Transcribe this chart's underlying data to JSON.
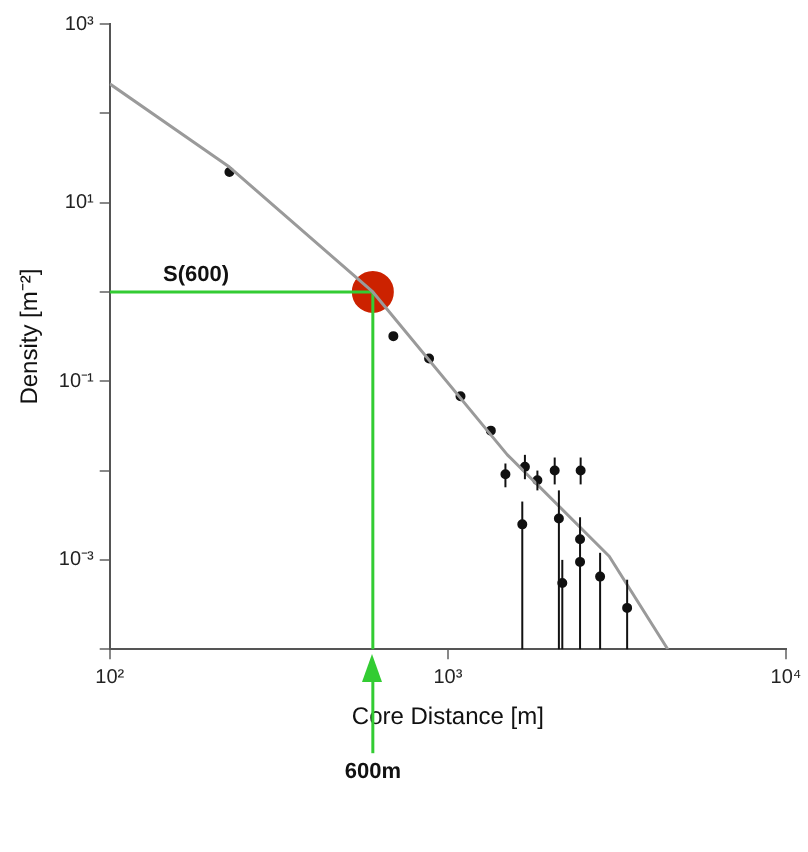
{
  "chart_data": {
    "type": "scatter",
    "xlabel": "Core Distance [m]",
    "ylabel": "Density [m⁻²]",
    "log": "xy",
    "xlim": [
      100,
      10000
    ],
    "ylim": [
      0.0001,
      1000
    ],
    "xticks": [
      {
        "value": 100,
        "label": "10²"
      },
      {
        "value": 1000,
        "label": "10³"
      },
      {
        "value": 10000,
        "label": "10⁴"
      }
    ],
    "yticks": [
      {
        "value": 0.0001,
        "label": null
      },
      {
        "value": 0.001,
        "label": "10⁻³"
      },
      {
        "value": 0.01,
        "label": null
      },
      {
        "value": 0.1,
        "label": "10⁻¹"
      },
      {
        "value": 1,
        "label": null
      },
      {
        "value": 10,
        "label": "10¹"
      },
      {
        "value": 100,
        "label": null
      },
      {
        "value": 1000,
        "label": "10³"
      }
    ],
    "grid": false,
    "legend": false,
    "series": [
      {
        "type": "line",
        "color": "#9a9a9a",
        "marker": "none",
        "x": [
          100,
          226,
          600,
          1500,
          3000,
          4470
        ],
        "values": [
          214,
          25,
          1,
          0.015,
          0.0011,
          0.0001
        ]
      },
      {
        "type": "line",
        "color": "#33cc33",
        "marker": "none",
        "x": [
          100,
          600,
          600
        ],
        "values": [
          1,
          1,
          0.0001
        ]
      },
      {
        "color": "#111111",
        "marker": "circle",
        "x": [
          226,
          690,
          880,
          1090,
          1340,
          1480,
          1690,
          1840,
          2070,
          2470,
          1660,
          2130,
          2460,
          2460,
          2180,
          2820,
          3390
        ],
        "values": [
          22,
          0.32,
          0.18,
          0.068,
          0.028,
          0.0091,
          0.011,
          0.0078,
          0.01,
          0.01,
          0.0025,
          0.0029,
          0.0017,
          0.00095,
          0.00055,
          0.00065,
          0.00029
        ],
        "errors": [
          null,
          null,
          null,
          null,
          null,
          [
            0.0065,
            0.012
          ],
          [
            0.008,
            0.015
          ],
          [
            0.006,
            0.01
          ],
          [
            0.007,
            0.014
          ],
          [
            0.007,
            0.014
          ],
          [
            0.0001,
            0.0045
          ],
          [
            0.0001,
            0.006
          ],
          [
            0.0001,
            0.003
          ],
          null,
          [
            0.0001,
            0.001
          ],
          [
            0.0001,
            0.0012
          ],
          [
            0.0001,
            0.0006
          ]
        ]
      },
      {
        "color": "#cc2200",
        "marker": "circle",
        "x": [
          600
        ],
        "values": [
          1
        ]
      }
    ],
    "annotations": [
      {
        "text": "S(600)",
        "x": 180,
        "y": 1
      },
      {
        "text": "600m",
        "x": 600
      }
    ]
  }
}
